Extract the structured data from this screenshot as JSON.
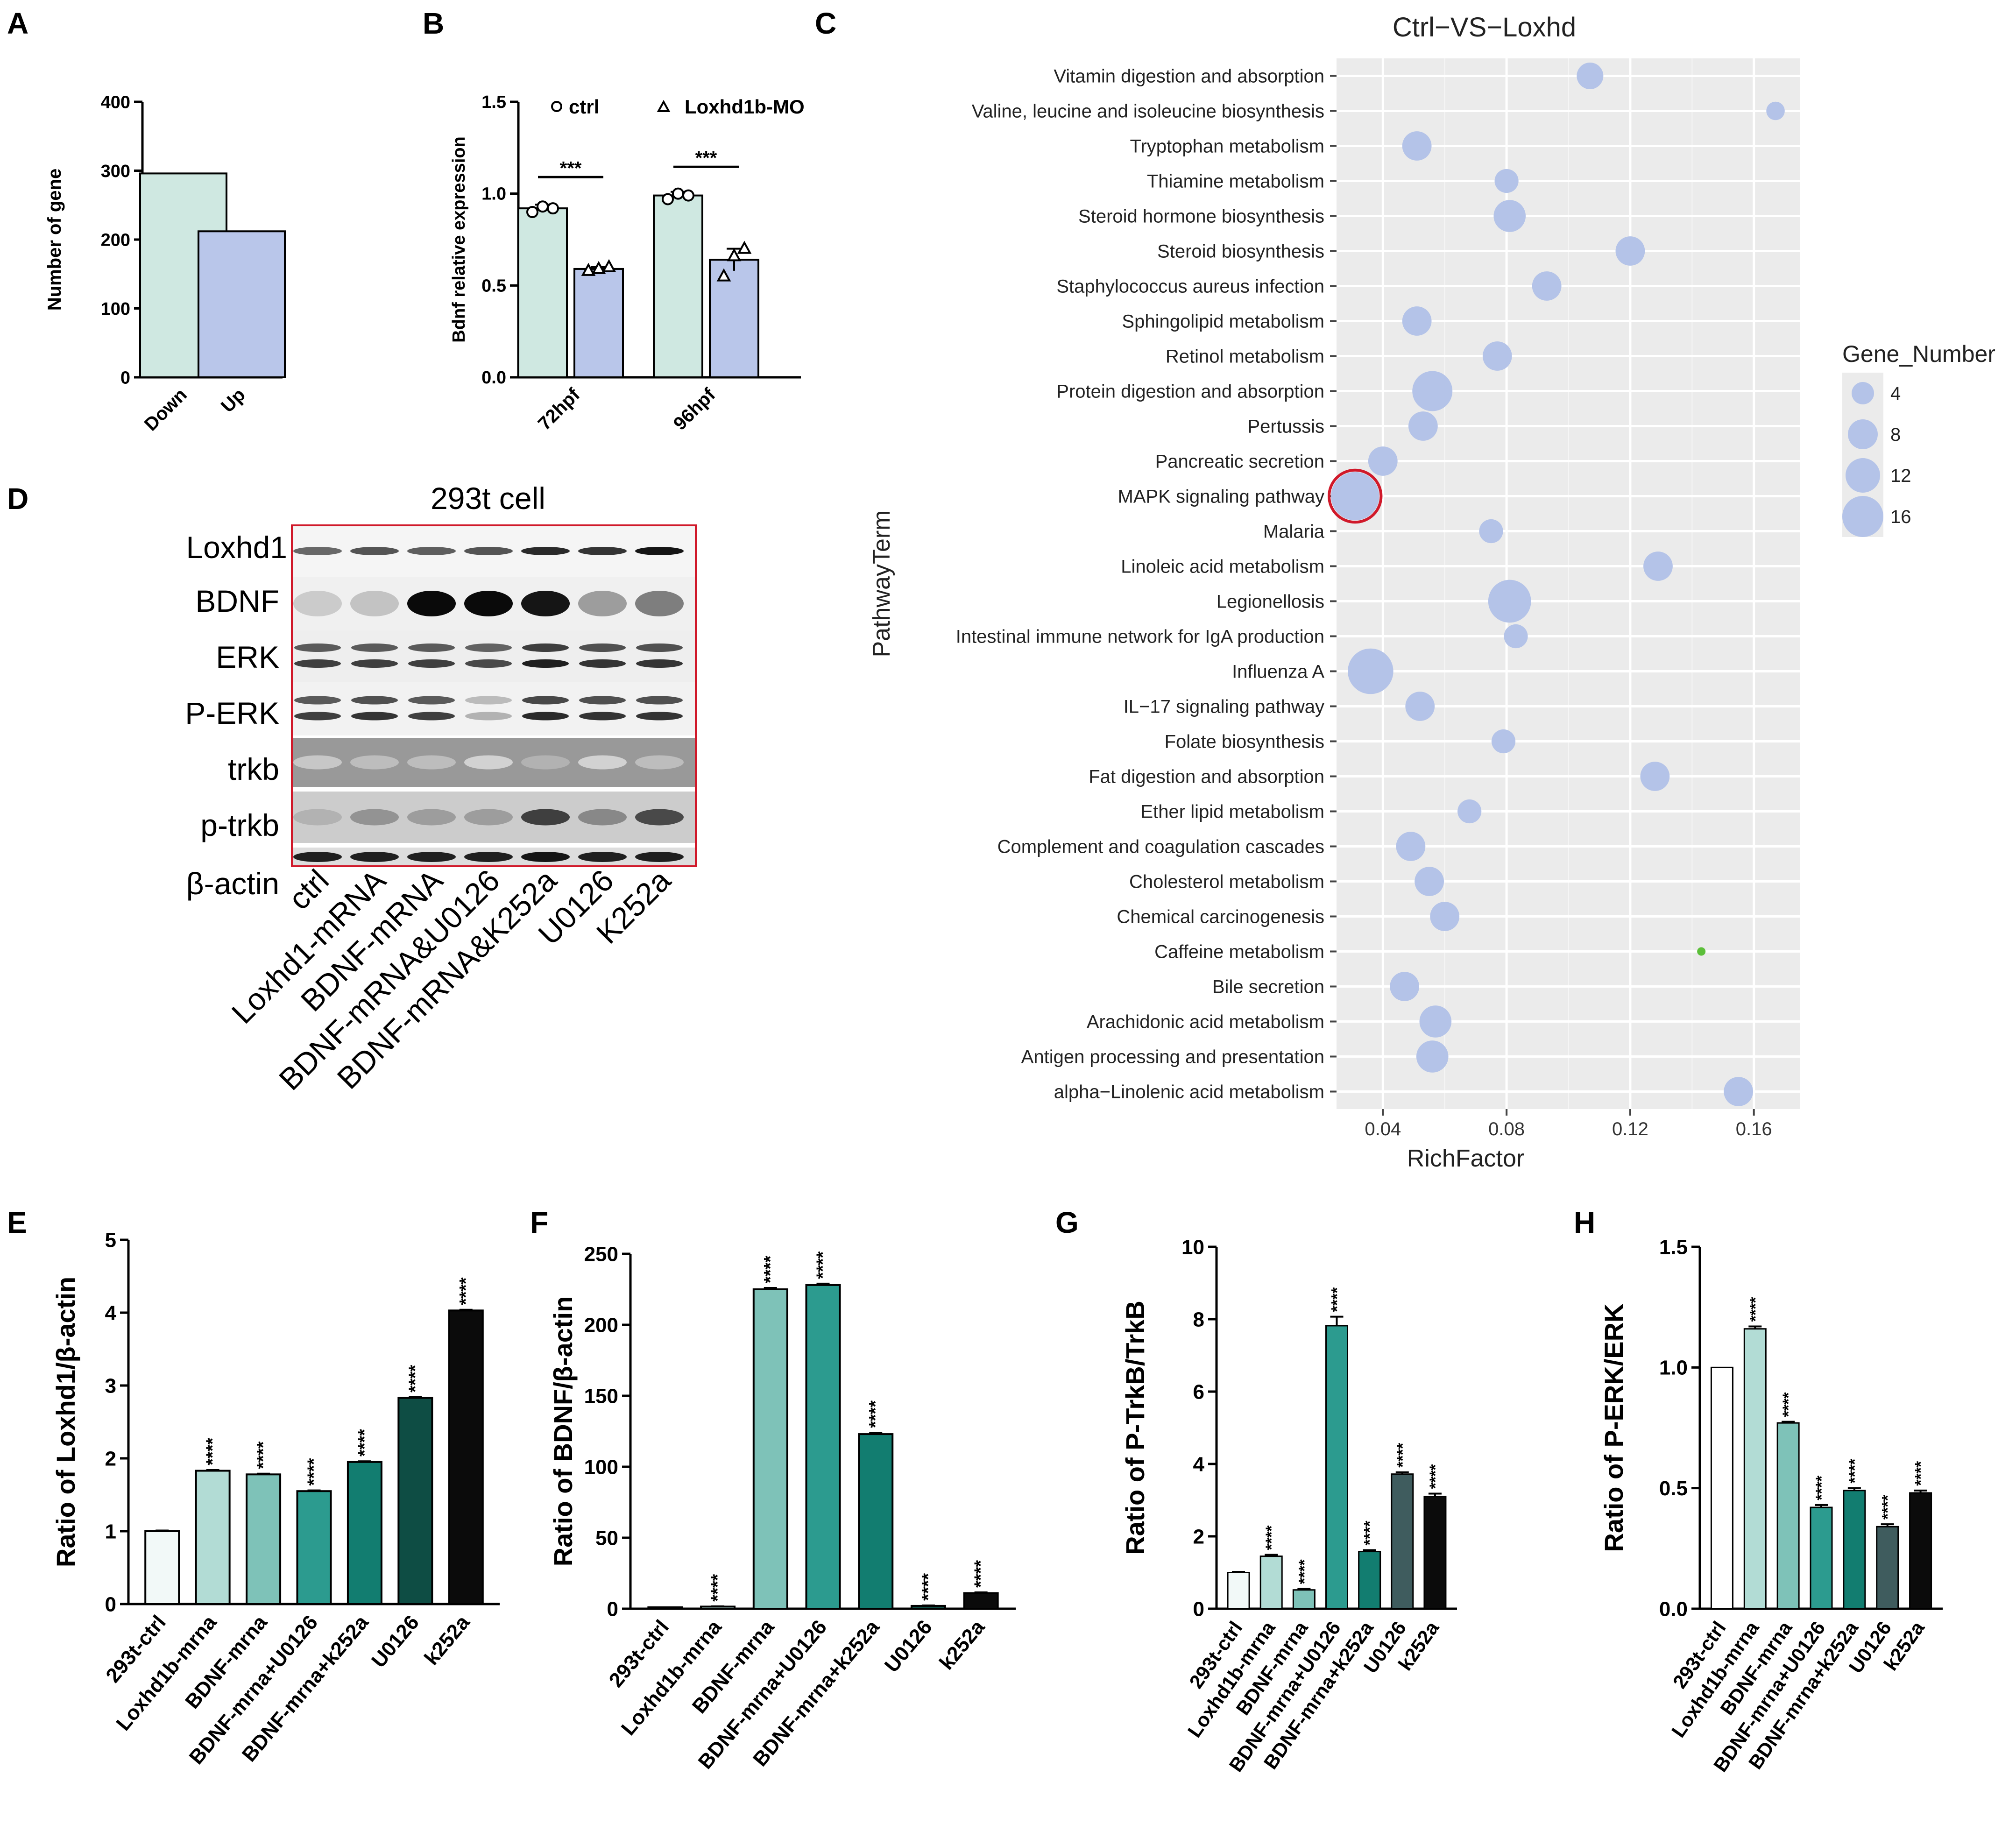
{
  "panel_letters": [
    "A",
    "B",
    "C",
    "D",
    "E",
    "F",
    "G",
    "H"
  ],
  "colors": {
    "mint": "#cfe8e1",
    "lavender": "#b9c6ea",
    "bubble": "#b4c3e8",
    "bubble_green": "#5cbf3a",
    "teal1": "#f2f9f8",
    "teal2": "#b2dcd5",
    "teal3": "#7ec2b8",
    "teal4": "#2c9b8f",
    "teal5": "#127d70",
    "teal6": "#0e4d44",
    "black": "#0b0b0b",
    "slate": "#3f5c5e",
    "highlight": "#d0192a",
    "panel_bg": "#ebebeb"
  },
  "chart_data": [
    {
      "id": "A",
      "type": "bar",
      "categories": [
        "Down",
        "Up"
      ],
      "values": [
        296,
        212
      ],
      "ylabel": "Number of gene",
      "ylim": [
        0,
        400
      ],
      "yticks": [
        0,
        100,
        200,
        300,
        400
      ]
    },
    {
      "id": "B",
      "type": "bar",
      "categories": [
        "72hpf",
        "96hpf"
      ],
      "series": [
        {
          "name": "ctrl",
          "values": [
            0.92,
            0.99
          ],
          "errors": [
            0.02,
            0.02
          ],
          "marker": "○",
          "points": [
            [
              0.9,
              0.93,
              0.92
            ],
            [
              0.97,
              1.0,
              0.99
            ]
          ]
        },
        {
          "name": "Loxhd1b-MO",
          "values": [
            0.59,
            0.64
          ],
          "errors": [
            0.01,
            0.06
          ],
          "marker": "▵",
          "points": [
            [
              0.58,
              0.59,
              0.6
            ],
            [
              0.55,
              0.66,
              0.7
            ]
          ]
        }
      ],
      "legend": [
        "ctrl",
        "Loxhd1b-MO"
      ],
      "significance": [
        "***",
        "***"
      ],
      "ylabel": "Bdnf relative expression",
      "ylim": [
        0,
        1.5
      ],
      "yticks": [
        "0.0",
        "0.5",
        "1.0",
        "1.5"
      ]
    },
    {
      "id": "C",
      "type": "scatter",
      "title": "Ctrl−VS−Loxhd",
      "xlabel": "RichFactor",
      "ylabel": "PathwayTerm",
      "xlim": [
        0.025,
        0.175
      ],
      "xticks": [
        "0.04",
        "0.08",
        "0.12",
        "0.16"
      ],
      "legend_title": "Gene_Number",
      "legend_sizes": [
        "4",
        "8",
        "12",
        "16"
      ],
      "pathways": [
        {
          "term": "Vitamin digestion and absorption",
          "rich": 0.107,
          "genes": 5
        },
        {
          "term": "Valine, leucine and isoleucine biosynthesis",
          "rich": 0.167,
          "genes": 2
        },
        {
          "term": "Tryptophan metabolism",
          "rich": 0.051,
          "genes": 6
        },
        {
          "term": "Thiamine metabolism",
          "rich": 0.08,
          "genes": 4
        },
        {
          "term": "Steroid hormone biosynthesis",
          "rich": 0.081,
          "genes": 7
        },
        {
          "term": "Steroid biosynthesis",
          "rich": 0.12,
          "genes": 6
        },
        {
          "term": "Staphylococcus aureus infection",
          "rich": 0.093,
          "genes": 6
        },
        {
          "term": "Sphingolipid metabolism",
          "rich": 0.051,
          "genes": 6
        },
        {
          "term": "Retinol metabolism",
          "rich": 0.077,
          "genes": 6
        },
        {
          "term": "Protein digestion and absorption",
          "rich": 0.056,
          "genes": 10
        },
        {
          "term": "Pertussis",
          "rich": 0.053,
          "genes": 6
        },
        {
          "term": "Pancreatic secretion",
          "rich": 0.04,
          "genes": 6
        },
        {
          "term": "MAPK signaling pathway",
          "rich": 0.031,
          "genes": 13,
          "highlight": true
        },
        {
          "term": "Malaria",
          "rich": 0.075,
          "genes": 4
        },
        {
          "term": "Linoleic acid metabolism",
          "rich": 0.129,
          "genes": 6
        },
        {
          "term": "Legionellosis",
          "rich": 0.081,
          "genes": 11
        },
        {
          "term": "Intestinal immune network for IgA production",
          "rich": 0.083,
          "genes": 4
        },
        {
          "term": "Influenza A",
          "rich": 0.036,
          "genes": 12
        },
        {
          "term": "IL−17 signaling pathway",
          "rich": 0.052,
          "genes": 6
        },
        {
          "term": "Folate biosynthesis",
          "rich": 0.079,
          "genes": 4
        },
        {
          "term": "Fat digestion and absorption",
          "rich": 0.128,
          "genes": 6
        },
        {
          "term": "Ether lipid metabolism",
          "rich": 0.068,
          "genes": 4
        },
        {
          "term": "Complement and coagulation cascades",
          "rich": 0.049,
          "genes": 6
        },
        {
          "term": "Cholesterol metabolism",
          "rich": 0.055,
          "genes": 6
        },
        {
          "term": "Chemical carcinogenesis",
          "rich": 0.06,
          "genes": 6
        },
        {
          "term": "Caffeine metabolism",
          "rich": 0.143,
          "genes": 1,
          "green": true
        },
        {
          "term": "Bile secretion",
          "rich": 0.047,
          "genes": 6
        },
        {
          "term": "Arachidonic acid metabolism",
          "rich": 0.057,
          "genes": 7
        },
        {
          "term": "Antigen processing and presentation",
          "rich": 0.056,
          "genes": 7
        },
        {
          "term": "alpha−Linolenic acid metabolism",
          "rich": 0.155,
          "genes": 6
        }
      ]
    },
    {
      "id": "E",
      "type": "bar",
      "categories": [
        "293t-ctrl",
        "Loxhd1b-mrna",
        "BDNF-mrna",
        "BDNF-mrna+U0126",
        "BDNF-mrna+k252a",
        "U0126",
        "k252a"
      ],
      "values": [
        1.0,
        1.83,
        1.78,
        1.55,
        1.95,
        2.83,
        4.03
      ],
      "errors": [
        0.01,
        0.01,
        0.01,
        0.01,
        0.01,
        0.01,
        0.01
      ],
      "stars": [
        "",
        "****",
        "****",
        "****",
        "****",
        "****",
        "****"
      ],
      "ylabel": "Ratio of Loxhd1/β-actin",
      "ylim": [
        0,
        5
      ],
      "yticks": [
        "0",
        "1",
        "2",
        "3",
        "4",
        "5"
      ]
    },
    {
      "id": "F",
      "type": "bar",
      "categories": [
        "293t-ctrl",
        "Loxhd1b-mrna",
        "BDNF-mrna",
        "BDNF-mrna+U0126",
        "BDNF-mrna+k252a",
        "U0126",
        "k252a"
      ],
      "values": [
        1,
        1.5,
        225,
        228,
        123,
        2,
        11
      ],
      "errors": [
        0,
        0.2,
        1,
        1,
        1,
        0.3,
        0.5
      ],
      "stars": [
        "",
        "****",
        "****",
        "****",
        "****",
        "****",
        "****"
      ],
      "ylabel": "Ratio of BDNF/β-actin",
      "ylim": [
        0,
        250
      ],
      "yticks": [
        "0",
        "50",
        "100",
        "150",
        "200",
        "250"
      ]
    },
    {
      "id": "G",
      "type": "bar",
      "categories": [
        "293t-ctrl",
        "Loxhd1b-mrna",
        "BDNF-mrna",
        "BDNF-mrna+U0126",
        "BDNF-mrna+k252a",
        "U0126",
        "k252a"
      ],
      "values": [
        1.0,
        1.45,
        0.52,
        7.82,
        1.58,
        3.72,
        3.1
      ],
      "errors": [
        0.02,
        0.04,
        0.03,
        0.25,
        0.04,
        0.05,
        0.08
      ],
      "stars": [
        "",
        "****",
        "****",
        "****",
        "****",
        "****",
        "****"
      ],
      "ylabel": "Ratio of P-TrkB/TrkB",
      "ylim": [
        0,
        10
      ],
      "yticks": [
        "0",
        "2",
        "4",
        "6",
        "8",
        "10"
      ]
    },
    {
      "id": "H",
      "type": "bar",
      "categories": [
        "293t-ctrl",
        "Loxhd1b-mrna",
        "BDNF-mrna",
        "BDNF-mrna+U0126",
        "BDNF-mrna+k252a",
        "U0126",
        "k252a"
      ],
      "values": [
        1.0,
        1.16,
        0.77,
        0.42,
        0.49,
        0.34,
        0.48
      ],
      "errors": [
        0,
        0.01,
        0.005,
        0.01,
        0.01,
        0.01,
        0.01
      ],
      "stars": [
        "",
        "****",
        "****",
        "****",
        "****",
        "****",
        "****"
      ],
      "ylabel": "Ratio of P-ERK/ERK",
      "ylim": [
        0,
        1.5
      ],
      "yticks": [
        "0.0",
        "0.5",
        "1.0",
        "1.5"
      ]
    }
  ],
  "western_blot": {
    "title": "293t cell",
    "proteins": [
      "Loxhd1",
      "BDNF",
      "ERK",
      "P-ERK",
      "trkb",
      "p-trkb",
      "β-actin"
    ],
    "lanes": [
      "ctrl",
      "Loxhd1-mRNA",
      "BDNF-mRNA",
      "BDNF-mRNA&U0126",
      "BDNF-mRNA&K252a",
      "U0126",
      "K252a"
    ]
  }
}
